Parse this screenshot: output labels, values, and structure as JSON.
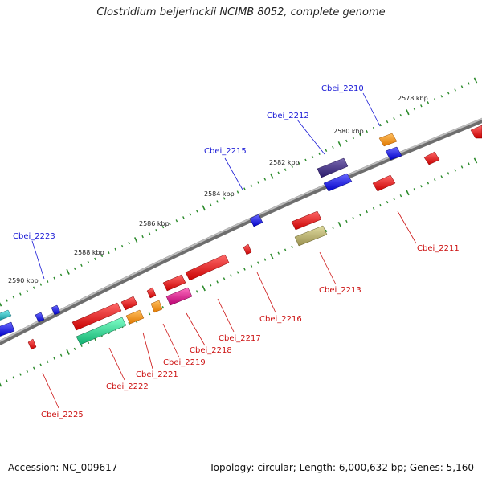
{
  "header": {
    "title": "Clostridium beijerinckii NCIMB 8052, complete genome"
  },
  "footer": {
    "accession": "Accession: NC_009617",
    "topology": "Topology: circular; Length: 6,000,632 bp; Genes: 5,160"
  },
  "scale_labels": [
    "2578 kbp",
    "2580 kbp",
    "2582 kbp",
    "2584 kbp",
    "2586 kbp",
    "2588 kbp",
    "2590 kbp"
  ],
  "forward_gene_labels": [
    "Cbei_2210",
    "Cbei_2212",
    "Cbei_2215",
    "Cbei_2223"
  ],
  "reverse_gene_labels": [
    "Cbei_2211",
    "Cbei_2213",
    "Cbei_2216",
    "Cbei_2217",
    "Cbei_2218",
    "Cbei_2219",
    "Cbei_2221",
    "Cbei_2222",
    "Cbei_2225"
  ],
  "colors": {
    "forward_label": "#1a1ad6",
    "reverse_label": "#cc1111",
    "tick": "#2a8a2a",
    "backbone": "#8c8c8c",
    "gene_red": "#e01010",
    "gene_blue": "#1a1ae0",
    "gene_orange": "#ff9a00",
    "gene_navy": "#4a3a8a",
    "gene_olive": "#b8b070",
    "gene_magenta": "#e02090",
    "gene_teal": "#20d890",
    "gene_cyan": "#20b8c0"
  }
}
